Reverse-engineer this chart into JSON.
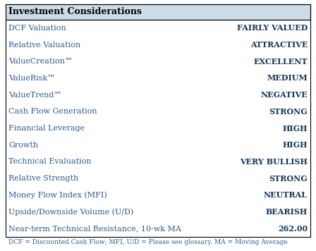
{
  "title": "Investment Considerations",
  "header_bg": "#ccdce8",
  "header_text_color": "#000000",
  "rows": [
    {
      "label": "DCF Valuation",
      "value": "FAIRLY VALUED"
    },
    {
      "label": "Relative Valuation",
      "value": "ATTRACTIVE"
    },
    {
      "label": "ValueCreation™",
      "value": "EXCELLENT"
    },
    {
      "label": "ValueRisk™",
      "value": "MEDIUM"
    },
    {
      "label": "ValueTrend™",
      "value": "NEGATIVE"
    },
    {
      "label": "Cash Flow Generation",
      "value": "STRONG"
    },
    {
      "label": "Financial Leverage",
      "value": "HIGH"
    },
    {
      "label": "Growth",
      "value": "HIGH"
    },
    {
      "label": "Technical Evaluation",
      "value": "VERY BULLISH"
    },
    {
      "label": "Relative Strength",
      "value": "STRONG"
    },
    {
      "label": "Money Flow Index (MFI)",
      "value": "NEUTRAL"
    },
    {
      "label": "Upside/Downside Volume (U/D)",
      "value": "BEARISH"
    },
    {
      "label": "Near-term Technical Resistance, 10-wk MA",
      "value": "262.00"
    }
  ],
  "footnote": "DCF = Discounted Cash Flow; MFI, U/D = Please see glossary. MA = Moving Average",
  "label_color": "#2e5b8a",
  "value_color": "#1a3a5c",
  "footnote_color": "#2e5b8a",
  "border_color": "#000000",
  "bg_color": "#ffffff",
  "label_fontsize": 8.0,
  "value_fontsize": 8.0,
  "footnote_fontsize": 6.5,
  "title_fontsize": 9.0
}
